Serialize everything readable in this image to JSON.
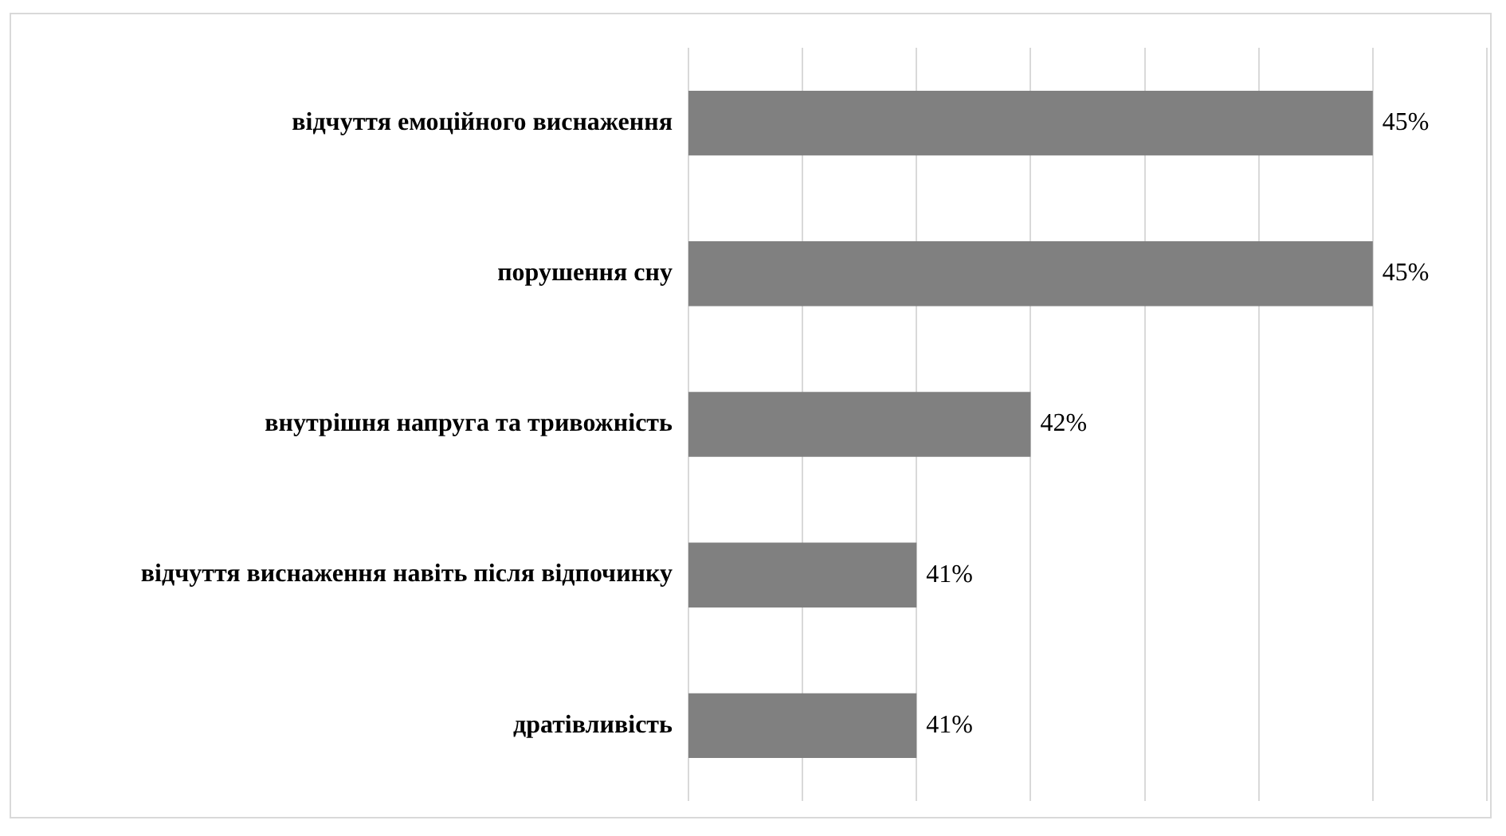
{
  "chart_data": {
    "type": "bar",
    "orientation": "horizontal",
    "categories": [
      "відчуття емоційного виснаження",
      "порушення сну",
      "внутрішня напруга та тривожність",
      "відчуття виснаження навіть після відпочинку",
      "дратівливість"
    ],
    "values": [
      45,
      45,
      42,
      41,
      41
    ],
    "value_labels": [
      "45%",
      "45%",
      "42%",
      "41%",
      "41%"
    ],
    "color": "#808080",
    "xlim": [
      39,
      46
    ],
    "xticks": [
      {
        "value": 39,
        "label": null
      },
      {
        "value": 40,
        "label": null
      },
      {
        "value": 41,
        "label": null
      },
      {
        "value": 42,
        "label": null
      },
      {
        "value": 43,
        "label": null
      },
      {
        "value": 44,
        "label": null
      },
      {
        "value": 45,
        "label": null
      },
      {
        "value": 46,
        "label": null
      }
    ],
    "grid": "x",
    "tick_labels": "y",
    "legend": false
  }
}
